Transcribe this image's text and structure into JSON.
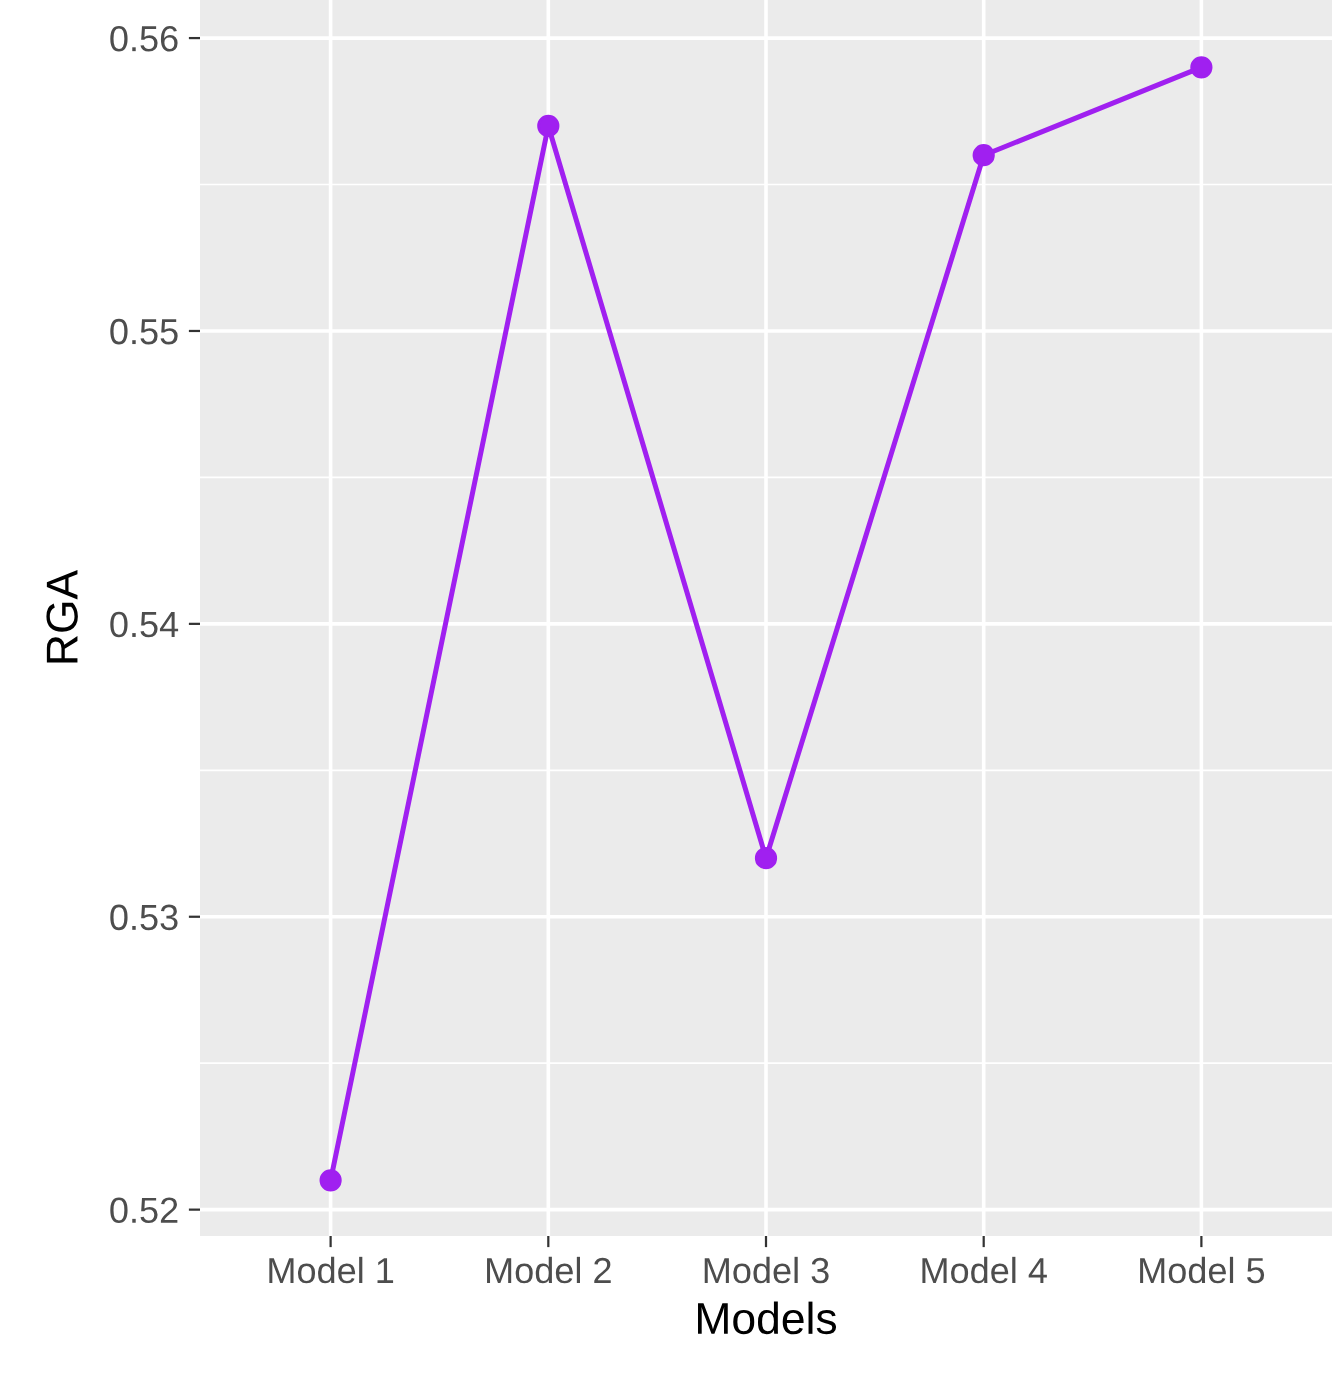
{
  "chart_data": {
    "type": "line",
    "xlabel": "Models",
    "ylabel": "RGA",
    "categories": [
      "Model 1",
      "Model 2",
      "Model 3",
      "Model 4",
      "Model 5"
    ],
    "series": [
      {
        "color": "#a020f0",
        "values": [
          0.521,
          0.557,
          0.532,
          0.556,
          0.559
        ]
      }
    ],
    "ylim": [
      0.5191,
      0.5613
    ],
    "yticks": [
      0.52,
      0.53,
      0.54,
      0.55,
      0.56
    ],
    "grid": true,
    "marker": "circle",
    "line_style": "solid"
  }
}
